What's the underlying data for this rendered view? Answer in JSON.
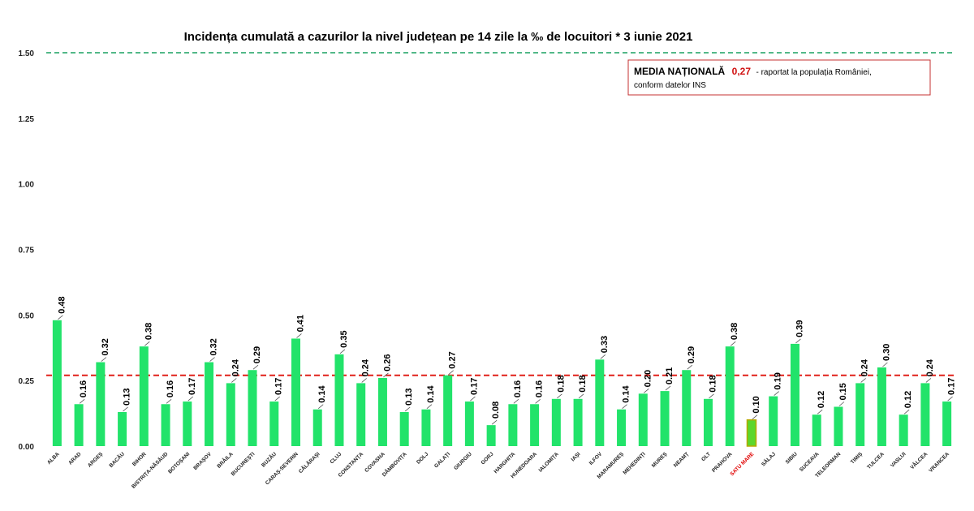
{
  "chart_data": {
    "type": "bar",
    "title": "Incidența cumulată a cazurilor la nivel județean pe 14 zile la ‰ de locuitori *  3 iunie 2021",
    "xlabel": "",
    "ylabel": "",
    "ylim": [
      0,
      1.5
    ],
    "yticks": [
      "0.00",
      "0.25",
      "0.50",
      "0.75",
      "1.00",
      "1.25",
      "1.50"
    ],
    "grid": false,
    "categories": [
      "ALBA",
      "ARAD",
      "ARGEȘ",
      "BACĂU",
      "BIHOR",
      "BISTRIȚA-NĂSĂUD",
      "BOTOȘANI",
      "BRAȘOV",
      "BRĂILA",
      "BUCUREȘTI",
      "BUZĂU",
      "CARAȘ-SEVERIN",
      "CĂLĂRAȘI",
      "CLUJ",
      "CONSTANȚA",
      "COVASNA",
      "DÂMBOVIȚA",
      "DOLJ",
      "GALAȚI",
      "GIURGIU",
      "GORJ",
      "HARGHITA",
      "HUNEDOARA",
      "IALOMIȚA",
      "IAȘI",
      "ILFOV",
      "MARAMUREȘ",
      "MEHEDINȚI",
      "MUREȘ",
      "NEAMȚ",
      "OLT",
      "PRAHOVA",
      "SATU MARE",
      "SĂLAJ",
      "SIBIU",
      "SUCEAVA",
      "TELEORMAN",
      "TIMIȘ",
      "TULCEA",
      "VASLUI",
      "VÂLCEA",
      "VRANCEA"
    ],
    "values": [
      0.48,
      0.16,
      0.32,
      0.13,
      0.38,
      0.16,
      0.17,
      0.32,
      0.24,
      0.29,
      0.17,
      0.41,
      0.14,
      0.35,
      0.24,
      0.26,
      0.13,
      0.14,
      0.27,
      0.17,
      0.08,
      0.16,
      0.16,
      0.18,
      0.18,
      0.33,
      0.14,
      0.2,
      0.21,
      0.29,
      0.18,
      0.38,
      0.1,
      0.19,
      0.39,
      0.12,
      0.15,
      0.24,
      0.3,
      0.12,
      0.24,
      0.17
    ],
    "value_labels": [
      "0.48",
      "0.16",
      "0.32",
      "0.13",
      "0.38",
      "0.16",
      "0.17",
      "0.32",
      "0.24",
      "0.29",
      "0.17",
      "0.41",
      "0.14",
      "0.35",
      "0.24",
      "0.26",
      "0.13",
      "0.14",
      "0.27",
      "0.17",
      "0.08",
      "0.16",
      "0.16",
      "0.18",
      "0.18",
      "0.33",
      "0.14",
      "0.20",
      "0.21",
      "0.29",
      "0.18",
      "0.38",
      "0.10",
      "0.19",
      "0.39",
      "0.12",
      "0.15",
      "0.24",
      "0.30",
      "0.12",
      "0.24",
      "0.17"
    ],
    "highlight_category": "SATU MARE",
    "reference_lines": [
      {
        "value": 0.27,
        "color": "#e0201a",
        "style": "dashed"
      },
      {
        "value": 1.5,
        "color": "#19a060",
        "style": "dashed"
      }
    ],
    "annotation": {
      "prefix": "MEDIA NAȚIONALĂ",
      "value": "0,27",
      "suffix": " - raportat la populația României,",
      "line2": "conform datelor INS"
    },
    "colors": {
      "bar": "#22e36a",
      "highlight_bar": "#5dd62c",
      "highlight_border": "#b8a800",
      "highlight_label": "#e00000",
      "national_line": "#e0201a",
      "max_line": "#19a060",
      "annotation_border": "#c43030"
    }
  }
}
